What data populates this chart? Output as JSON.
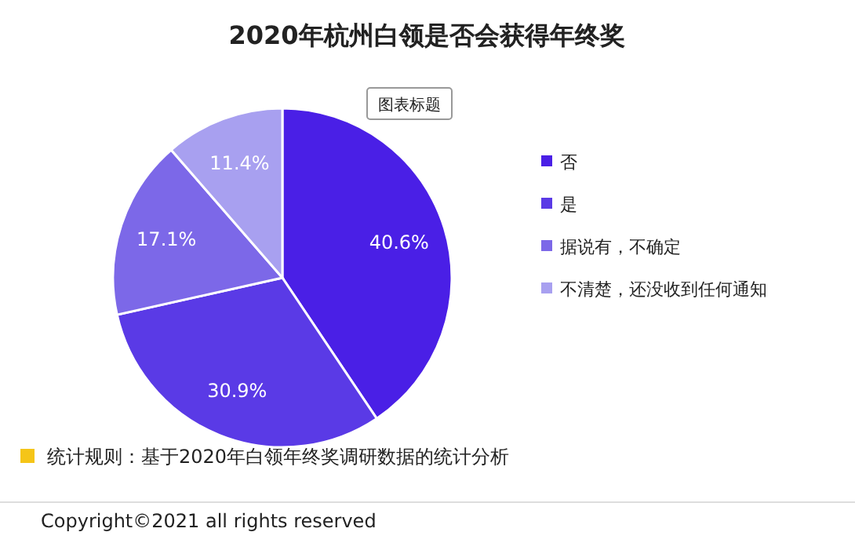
{
  "chart_data": {
    "type": "pie",
    "title": "2020年杭州白领是否会获得年终奖",
    "categories": [
      "否",
      "是",
      "据说有，不确定",
      "不清楚，还没收到任何通知"
    ],
    "values": [
      40.6,
      30.9,
      17.1,
      11.4
    ],
    "colors": [
      "#4a1fe6",
      "#5a3ae6",
      "#7c68e8",
      "#a8a0f0"
    ],
    "value_labels": [
      "40.6%",
      "30.9%",
      "17.1%",
      "11.4%"
    ],
    "legend": "right",
    "annotations": [
      "图表标题",
      "统计规则：基于2020年白领年终奖调研数据的统计分析",
      "Copyright©2021 all rights reserved"
    ]
  }
}
